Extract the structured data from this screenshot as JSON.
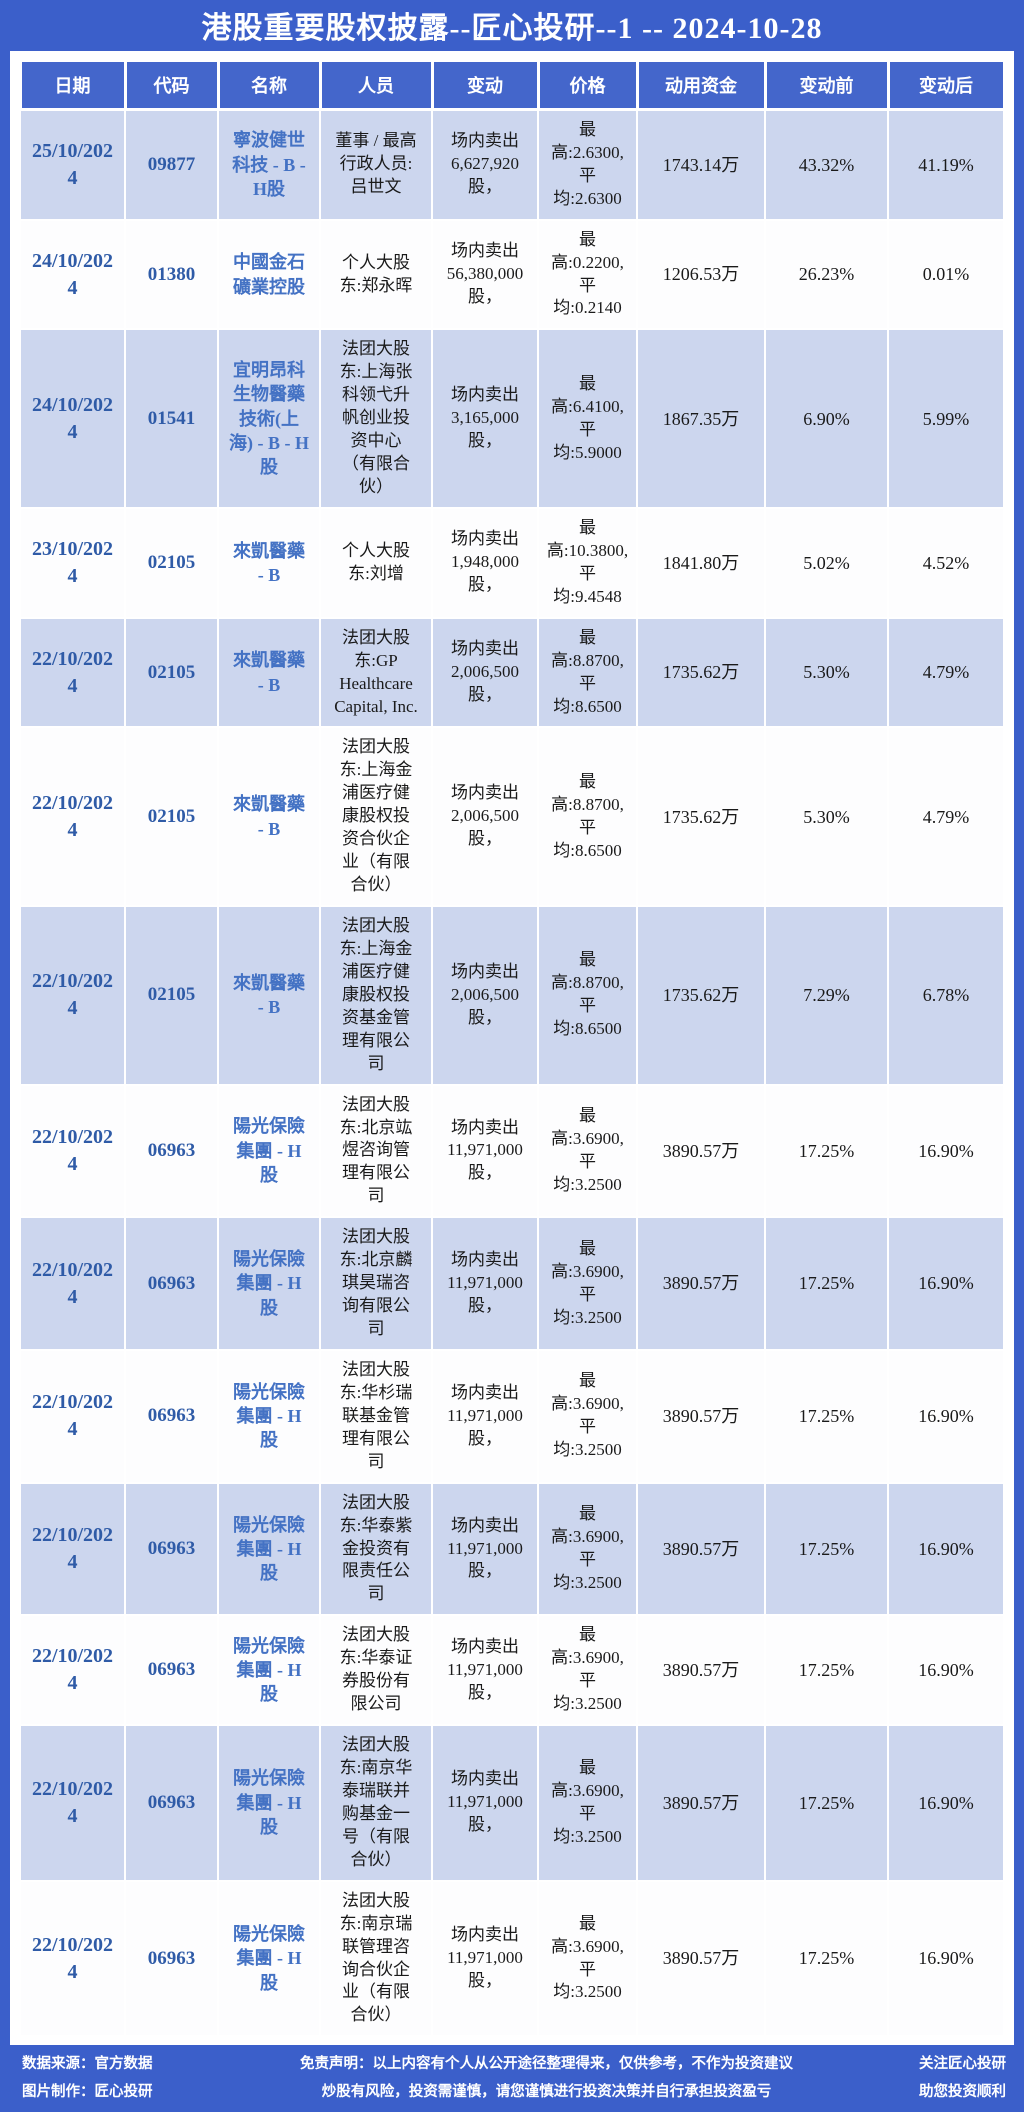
{
  "title": "港股重要股权披露--匠心投研--1 -- 2024-10-28",
  "colors": {
    "page_background": "#3b5fca",
    "header_cell": "#4466cb",
    "row_alternate": "#ccd6ee",
    "row_plain": "#fdfdfe",
    "date_code_text": "#2f5ba7",
    "name_text": "#4472c4"
  },
  "table": {
    "headers": [
      "日期",
      "代码",
      "名称",
      "人员",
      "变动",
      "价格",
      "动用资金",
      "变动前",
      "变动后"
    ],
    "rows": [
      {
        "date": "25/10/2024",
        "code": "09877",
        "name": "寧波健世科技 - B - H股",
        "person": "董事 / 最高行政人员:吕世文",
        "change": "场内卖出6,627,920股，",
        "price": "最高:2.6300, 平均:2.6300",
        "capital": "1743.14万",
        "before": "43.32%",
        "after": "41.19%"
      },
      {
        "date": "24/10/2024",
        "code": "01380",
        "name": "中國金石礦業控股",
        "person": "个人大股东:郑永晖",
        "change": "场内卖出56,380,000股，",
        "price": "最高:0.2200, 平均:0.2140",
        "capital": "1206.53万",
        "before": "26.23%",
        "after": "0.01%"
      },
      {
        "date": "24/10/2024",
        "code": "01541",
        "name": "宜明昂科生物醫藥技術(上海) - B - H股",
        "person": "法团大股东:上海张科领弋升帆创业投资中心（有限合伙）",
        "change": "场内卖出3,165,000股，",
        "price": "最高:6.4100, 平均:5.9000",
        "capital": "1867.35万",
        "before": "6.90%",
        "after": "5.99%"
      },
      {
        "date": "23/10/2024",
        "code": "02105",
        "name": "來凱醫藥 - B",
        "person": "个人大股东:刘增",
        "change": "场内卖出1,948,000股，",
        "price": "最高:10.3800, 平均:9.4548",
        "capital": "1841.80万",
        "before": "5.02%",
        "after": "4.52%"
      },
      {
        "date": "22/10/2024",
        "code": "02105",
        "name": "來凱醫藥 - B",
        "person": "法团大股东:GP Healthcare Capital, Inc.",
        "change": "场内卖出2,006,500股，",
        "price": "最高:8.8700, 平均:8.6500",
        "capital": "1735.62万",
        "before": "5.30%",
        "after": "4.79%"
      },
      {
        "date": "22/10/2024",
        "code": "02105",
        "name": "來凱醫藥 - B",
        "person": "法团大股东:上海金浦医疗健康股权投资合伙企业（有限合伙）",
        "change": "场内卖出2,006,500股，",
        "price": "最高:8.8700, 平均:8.6500",
        "capital": "1735.62万",
        "before": "5.30%",
        "after": "4.79%"
      },
      {
        "date": "22/10/2024",
        "code": "02105",
        "name": "來凱醫藥 - B",
        "person": "法团大股东:上海金浦医疗健康股权投资基金管理有限公司",
        "change": "场内卖出2,006,500股，",
        "price": "最高:8.8700, 平均:8.6500",
        "capital": "1735.62万",
        "before": "7.29%",
        "after": "6.78%"
      },
      {
        "date": "22/10/2024",
        "code": "06963",
        "name": "陽光保險集團 - H股",
        "person": "法团大股东:北京竑煜咨询管理有限公司",
        "change": "场内卖出11,971,000股，",
        "price": "最高:3.6900, 平均:3.2500",
        "capital": "3890.57万",
        "before": "17.25%",
        "after": "16.90%"
      },
      {
        "date": "22/10/2024",
        "code": "06963",
        "name": "陽光保險集團 - H股",
        "person": "法团大股东:北京麟琪昊瑞咨询有限公司",
        "change": "场内卖出11,971,000股，",
        "price": "最高:3.6900, 平均:3.2500",
        "capital": "3890.57万",
        "before": "17.25%",
        "after": "16.90%"
      },
      {
        "date": "22/10/2024",
        "code": "06963",
        "name": "陽光保險集團 - H股",
        "person": "法团大股东:华杉瑞联基金管理有限公司",
        "change": "场内卖出11,971,000股，",
        "price": "最高:3.6900, 平均:3.2500",
        "capital": "3890.57万",
        "before": "17.25%",
        "after": "16.90%"
      },
      {
        "date": "22/10/2024",
        "code": "06963",
        "name": "陽光保險集團 - H股",
        "person": "法团大股东:华泰紫金投资有限责任公司",
        "change": "场内卖出11,971,000股，",
        "price": "最高:3.6900, 平均:3.2500",
        "capital": "3890.57万",
        "before": "17.25%",
        "after": "16.90%"
      },
      {
        "date": "22/10/2024",
        "code": "06963",
        "name": "陽光保險集團 - H股",
        "person": "法团大股东:华泰证券股份有限公司",
        "change": "场内卖出11,971,000股，",
        "price": "最高:3.6900, 平均:3.2500",
        "capital": "3890.57万",
        "before": "17.25%",
        "after": "16.90%"
      },
      {
        "date": "22/10/2024",
        "code": "06963",
        "name": "陽光保險集團 - H股",
        "person": "法团大股东:南京华泰瑞联并购基金一号（有限合伙）",
        "change": "场内卖出11,971,000股，",
        "price": "最高:3.6900, 平均:3.2500",
        "capital": "3890.57万",
        "before": "17.25%",
        "after": "16.90%"
      },
      {
        "date": "22/10/2024",
        "code": "06963",
        "name": "陽光保險集團 - H股",
        "person": "法团大股东:南京瑞联管理咨询合伙企业（有限合伙）",
        "change": "场内卖出11,971,000股，",
        "price": "最高:3.6900, 平均:3.2500",
        "capital": "3890.57万",
        "before": "17.25%",
        "after": "16.90%"
      }
    ]
  },
  "footer": {
    "source_line1": "数据来源：官方数据",
    "source_line2": "图片制作：匠心投研",
    "disclaimer_line1": "免责声明：以上内容有个人从公开途径整理得来，仅供参考，不作为投资建议",
    "disclaimer_line2": "炒股有风险，投资需谨慎，请您谨慎进行投资决策并自行承担投资盈亏",
    "right_line1": "关注匠心投研",
    "right_line2": "助您投资顺利"
  }
}
